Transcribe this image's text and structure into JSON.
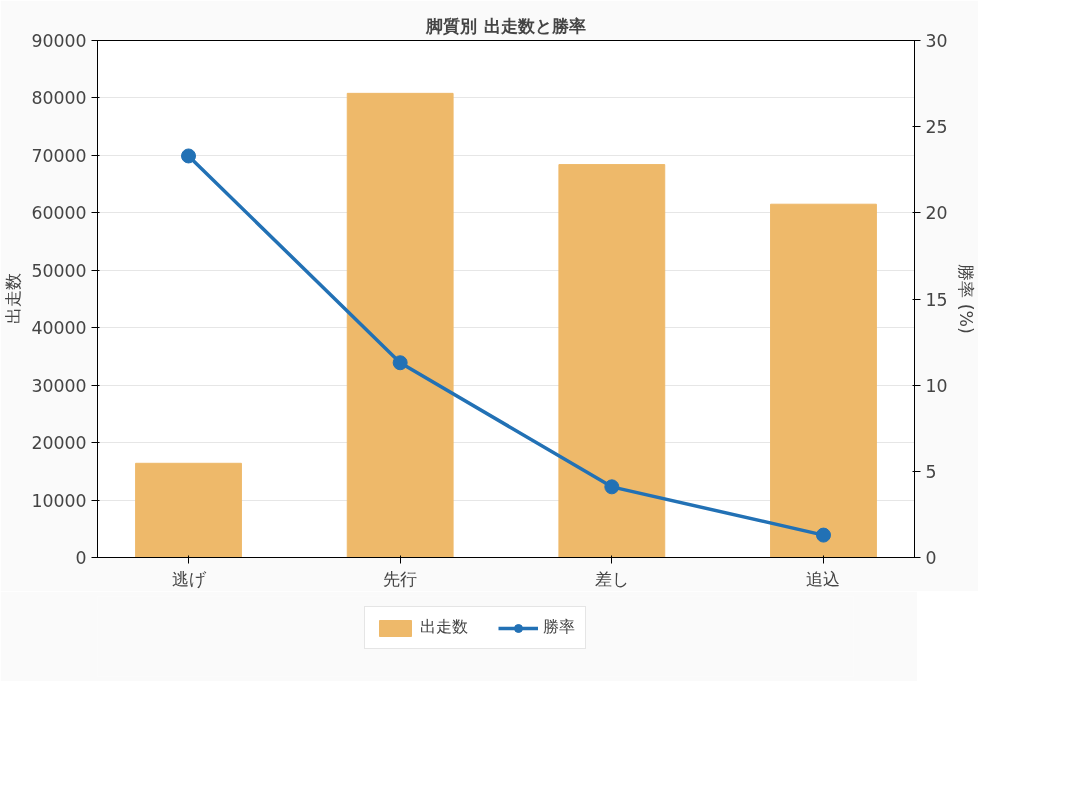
{
  "chart_data": {
    "type": "bar",
    "title": "脚質別 出走数と勝率",
    "ylabel": "出走数",
    "y2label": "勝率 (%)",
    "categories": [
      "逃げ",
      "先行",
      "差し",
      "追込"
    ],
    "series": [
      {
        "name": "出走数",
        "color": "#eeb96a",
        "values": [
          16400,
          80800,
          68400,
          61500
        ]
      },
      {
        "name": "勝率",
        "type": "line",
        "axis": "y2",
        "color": "#2271b5",
        "marker": "circle",
        "values": [
          23.3,
          11.3,
          4.1,
          1.3
        ]
      }
    ],
    "ylim": [
      0,
      90000
    ],
    "yticks": [
      0,
      10000,
      20000,
      30000,
      40000,
      50000,
      60000,
      70000,
      80000,
      90000
    ],
    "y2lim": [
      0,
      30
    ],
    "y2ticks": [
      0,
      5,
      10,
      15,
      20,
      25,
      30
    ],
    "grid": "y",
    "legend": "bottom"
  }
}
